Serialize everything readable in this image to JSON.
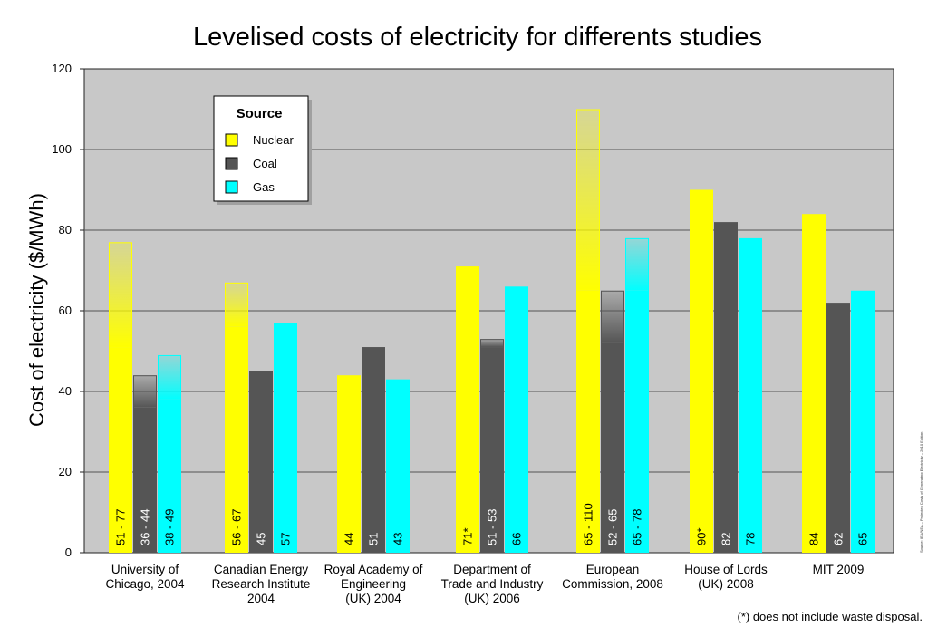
{
  "chart_data": {
    "type": "bar",
    "title": "Levelised costs of electricity for differents studies",
    "ylabel": "Cost of electricity ($/MWh)",
    "ylim": [
      0,
      120
    ],
    "yticks": [
      "0",
      "20",
      "40",
      "60",
      "80",
      "100",
      "120"
    ],
    "grid": true,
    "legend": {
      "title": "Source",
      "placement": "top-left",
      "entries": [
        "Nuclear",
        "Coal",
        "Gas"
      ]
    },
    "categories": [
      [
        "University of",
        "Chicago, 2004"
      ],
      [
        "Canadian Energy",
        "Research Institute",
        "2004"
      ],
      [
        "Royal Academy of",
        "Engineering",
        "(UK) 2004"
      ],
      [
        "Department of",
        "Trade and Industry",
        "(UK) 2006"
      ],
      [
        "European",
        "Commission, 2008"
      ],
      [
        "House of Lords",
        "(UK) 2008"
      ],
      [
        "MIT 2009"
      ]
    ],
    "series": [
      {
        "name": "Nuclear",
        "color": "#ffff00",
        "low": [
          51,
          56,
          44,
          71,
          65,
          90,
          84
        ],
        "high": [
          77,
          67,
          44,
          71,
          110,
          90,
          84
        ],
        "labels": [
          "51 - 77",
          "56 - 67",
          "44",
          "71*",
          "65 - 110",
          "90*",
          "84"
        ]
      },
      {
        "name": "Coal",
        "color": "#555555",
        "low": [
          36,
          45,
          51,
          51,
          52,
          82,
          62
        ],
        "high": [
          44,
          45,
          51,
          53,
          65,
          82,
          62
        ],
        "labels": [
          "36 - 44",
          "45",
          "51",
          "51 - 53",
          "52 - 65",
          "82",
          "62"
        ]
      },
      {
        "name": "Gas",
        "color": "#00ffff",
        "low": [
          38,
          57,
          43,
          66,
          65,
          78,
          65
        ],
        "high": [
          49,
          57,
          43,
          66,
          78,
          78,
          65
        ],
        "labels": [
          "38 - 49",
          "57",
          "43",
          "66",
          "65 - 78",
          "78",
          "65"
        ]
      }
    ],
    "footnote": "(*) does not include waste disposal.",
    "source_note": "Source: IEA/NEA – Projected Costs of Generating Electricity – 2010 Edition"
  }
}
